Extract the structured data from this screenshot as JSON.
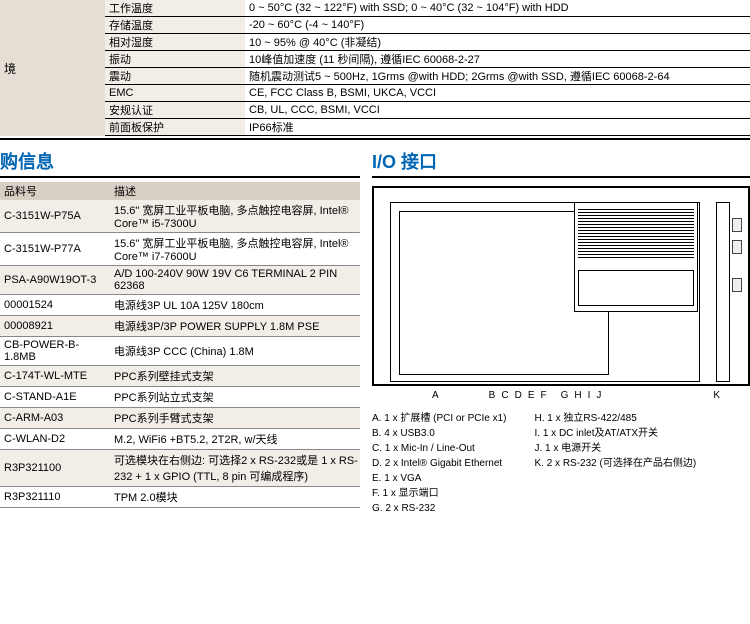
{
  "env": {
    "sidebar": "境",
    "rows": [
      {
        "label": "工作温度",
        "value": "0 ~ 50°C (32 ~ 122°F) with SSD; 0 ~ 40°C (32 ~ 104°F) with HDD"
      },
      {
        "label": "存储温度",
        "value": "-20 ~ 60°C (-4 ~ 140°F)"
      },
      {
        "label": "相对湿度",
        "value": "10 ~ 95% @ 40°C (非凝结)"
      },
      {
        "label": "振动",
        "value": "10峰值加速度 (11 秒间隔), 遵循IEC 60068-2-27"
      },
      {
        "label": "震动",
        "value": "随机震动测试5 ~ 500Hz, 1Grms @with HDD; 2Grms @with SSD, 遵循IEC 60068-2-64"
      },
      {
        "label": "EMC",
        "value": "CE, FCC Class B, BSMI, UKCA, VCCI"
      },
      {
        "label": "安规认证",
        "value": "CB, UL, CCC, BSMI, VCCI"
      },
      {
        "label": "前面板保护",
        "value": "IP66标准"
      }
    ]
  },
  "order": {
    "title": "购信息",
    "headers": {
      "col1": "品料号",
      "col2": "描述"
    },
    "rows": [
      {
        "pn": "C-3151W-P75A",
        "desc": "15.6\" 宽屏工业平板电脑, 多点触控电容屏, Intel® Core™ i5-7300U"
      },
      {
        "pn": "C-3151W-P77A",
        "desc": "15.6\" 宽屏工业平板电脑, 多点触控电容屏, Intel® Core™ i7-7600U"
      },
      {
        "pn": "PSA-A90W19OT-3",
        "desc": "A/D 100-240V 90W 19V C6 TERMINAL 2 PIN 62368"
      },
      {
        "pn": "00001524",
        "desc": "电源线3P UL 10A 125V 180cm"
      },
      {
        "pn": "00008921",
        "desc": "电源线3P/3P POWER SUPPLY 1.8M PSE"
      },
      {
        "pn": "CB-POWER-B-1.8MB",
        "desc": "电源线3P CCC (China) 1.8M"
      },
      {
        "pn": "C-174T-WL-MTE",
        "desc": "PPC系列壁挂式支架"
      },
      {
        "pn": "C-STAND-A1E",
        "desc": "PPC系列站立式支架"
      },
      {
        "pn": "C-ARM-A03",
        "desc": "PPC系列手臂式支架"
      },
      {
        "pn": "C-WLAN-D2",
        "desc": "M.2, WiFi6 +BT5.2, 2T2R, w/天线"
      },
      {
        "pn": "R3P321100",
        "desc": "可选模块在右侧边: 可选择2 x RS-232或是 1 x RS-232 + 1 x GPIO (TTL, 8 pin 可编成程序)"
      },
      {
        "pn": "R3P321110",
        "desc": "TPM 2.0模块"
      }
    ]
  },
  "io": {
    "title": "I/O 接口",
    "labels": [
      "A",
      "B",
      "C",
      "D",
      "E",
      "F",
      "G",
      "H",
      "I",
      "J",
      "K"
    ],
    "legend_left": [
      "A. 1 x 扩展槽 (PCI or PCIe x1)",
      "B. 4 x USB3.0",
      "C. 1 x Mic-In / Line-Out",
      "D. 2 x Intel® Gigabit Ethernet",
      "E. 1 x VGA",
      "F. 1 x 显示端口",
      "G. 2 x RS-232"
    ],
    "legend_right": [
      "H. 1 x 独立RS-422/485",
      "I.  1 x DC inlet及AT/ATX开关",
      "J.  1 x 电源开关",
      "K. 2 x RS-232 (可选择在产品右侧边)"
    ]
  }
}
